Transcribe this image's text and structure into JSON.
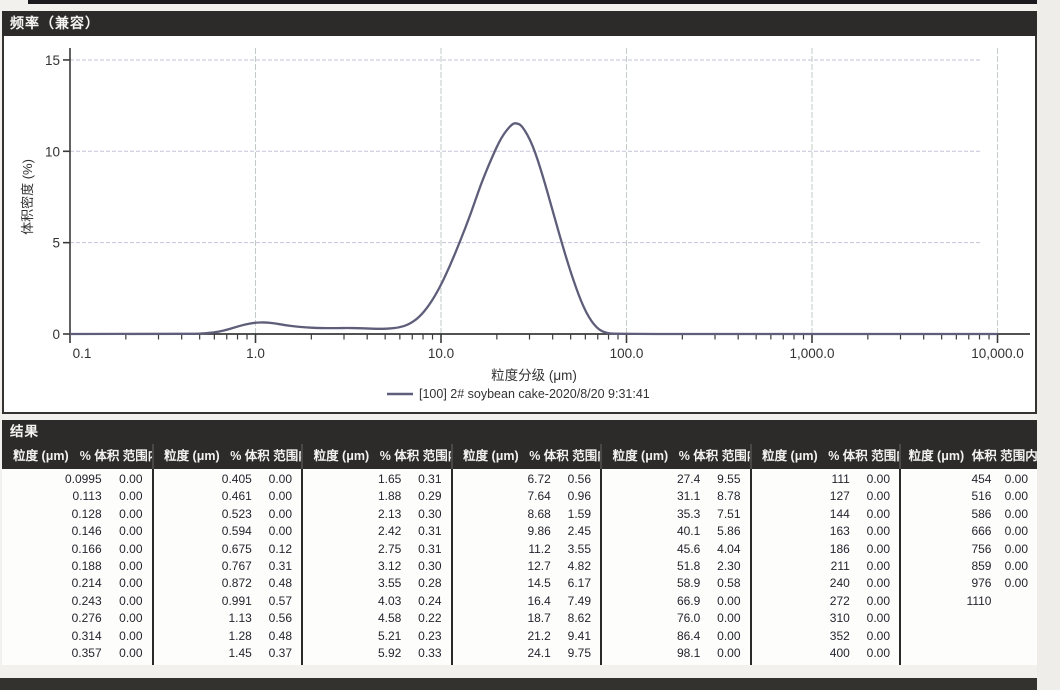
{
  "chart": {
    "title": "频率（兼容）",
    "ylabel": "体积密度 (%)",
    "xlabel": "粒度分级 (μm)",
    "legend": "[100] 2# soybean cake-2020/8/20 9:31:41",
    "x_tick_labels": [
      "0.1",
      "1.0",
      "10.0",
      "100.0",
      "1,000.0",
      "10,000.0"
    ],
    "y_tick_values": [
      0,
      5,
      10,
      15
    ]
  },
  "chart_data": {
    "type": "line",
    "title": "频率（兼容）",
    "xlabel": "粒度分级 (μm)",
    "ylabel": "体积密度 (%)",
    "x_scale": "log",
    "xlim": [
      0.1,
      10000
    ],
    "ylim": [
      0,
      15
    ],
    "grid": true,
    "legend_position": "bottom",
    "series": [
      {
        "name": "[100] 2# soybean cake-2020/8/20 9:31:41",
        "x": [
          0.1,
          0.4,
          0.5,
          0.594,
          0.675,
          0.767,
          0.872,
          0.991,
          1.13,
          1.28,
          1.45,
          1.65,
          1.88,
          2.13,
          2.42,
          2.75,
          3.12,
          3.55,
          4.03,
          4.58,
          5.21,
          5.92,
          6.72,
          7.64,
          8.68,
          9.86,
          11.2,
          12.7,
          14.5,
          16.4,
          18.7,
          21.2,
          24.1,
          25.5,
          27.4,
          31.1,
          35.3,
          40.1,
          45.6,
          51.8,
          58.9,
          66.9,
          76.0,
          90.0,
          1000.0,
          10000.0
        ],
        "y": [
          0,
          0,
          0.02,
          0.08,
          0.18,
          0.35,
          0.52,
          0.62,
          0.64,
          0.58,
          0.48,
          0.41,
          0.36,
          0.33,
          0.32,
          0.32,
          0.33,
          0.32,
          0.3,
          0.28,
          0.29,
          0.35,
          0.52,
          0.92,
          1.6,
          2.55,
          3.75,
          5.1,
          6.6,
          8.2,
          9.6,
          10.8,
          11.5,
          11.55,
          11.4,
          10.4,
          8.7,
          6.7,
          4.7,
          2.9,
          1.4,
          0.45,
          0.05,
          0,
          0,
          0
        ]
      }
    ]
  },
  "results": {
    "section_title": "结果",
    "headers": {
      "size": "粒度 (μm)",
      "pct": "% 体积 范围内",
      "pct_last": "体积 范围内"
    },
    "groups": [
      [
        [
          "0.0995",
          "0.00"
        ],
        [
          "0.113",
          "0.00"
        ],
        [
          "0.128",
          "0.00"
        ],
        [
          "0.146",
          "0.00"
        ],
        [
          "0.166",
          "0.00"
        ],
        [
          "0.188",
          "0.00"
        ],
        [
          "0.214",
          "0.00"
        ],
        [
          "0.243",
          "0.00"
        ],
        [
          "0.276",
          "0.00"
        ],
        [
          "0.314",
          "0.00"
        ],
        [
          "0.357",
          "0.00"
        ]
      ],
      [
        [
          "0.405",
          "0.00"
        ],
        [
          "0.461",
          "0.00"
        ],
        [
          "0.523",
          "0.00"
        ],
        [
          "0.594",
          "0.00"
        ],
        [
          "0.675",
          "0.12"
        ],
        [
          "0.767",
          "0.31"
        ],
        [
          "0.872",
          "0.48"
        ],
        [
          "0.991",
          "0.57"
        ],
        [
          "1.13",
          "0.56"
        ],
        [
          "1.28",
          "0.48"
        ],
        [
          "1.45",
          "0.37"
        ]
      ],
      [
        [
          "1.65",
          "0.31"
        ],
        [
          "1.88",
          "0.29"
        ],
        [
          "2.13",
          "0.30"
        ],
        [
          "2.42",
          "0.31"
        ],
        [
          "2.75",
          "0.31"
        ],
        [
          "3.12",
          "0.30"
        ],
        [
          "3.55",
          "0.28"
        ],
        [
          "4.03",
          "0.24"
        ],
        [
          "4.58",
          "0.22"
        ],
        [
          "5.21",
          "0.23"
        ],
        [
          "5.92",
          "0.33"
        ]
      ],
      [
        [
          "6.72",
          "0.56"
        ],
        [
          "7.64",
          "0.96"
        ],
        [
          "8.68",
          "1.59"
        ],
        [
          "9.86",
          "2.45"
        ],
        [
          "11.2",
          "3.55"
        ],
        [
          "12.7",
          "4.82"
        ],
        [
          "14.5",
          "6.17"
        ],
        [
          "16.4",
          "7.49"
        ],
        [
          "18.7",
          "8.62"
        ],
        [
          "21.2",
          "9.41"
        ],
        [
          "24.1",
          "9.75"
        ]
      ],
      [
        [
          "27.4",
          "9.55"
        ],
        [
          "31.1",
          "8.78"
        ],
        [
          "35.3",
          "7.51"
        ],
        [
          "40.1",
          "5.86"
        ],
        [
          "45.6",
          "4.04"
        ],
        [
          "51.8",
          "2.30"
        ],
        [
          "58.9",
          "0.58"
        ],
        [
          "66.9",
          "0.00"
        ],
        [
          "76.0",
          "0.00"
        ],
        [
          "86.4",
          "0.00"
        ],
        [
          "98.1",
          "0.00"
        ]
      ],
      [
        [
          "111",
          "0.00"
        ],
        [
          "127",
          "0.00"
        ],
        [
          "144",
          "0.00"
        ],
        [
          "163",
          "0.00"
        ],
        [
          "186",
          "0.00"
        ],
        [
          "211",
          "0.00"
        ],
        [
          "240",
          "0.00"
        ],
        [
          "272",
          "0.00"
        ],
        [
          "310",
          "0.00"
        ],
        [
          "352",
          "0.00"
        ],
        [
          "400",
          "0.00"
        ]
      ],
      [
        [
          "454",
          "0.00"
        ],
        [
          "516",
          "0.00"
        ],
        [
          "586",
          "0.00"
        ],
        [
          "666",
          "0.00"
        ],
        [
          "756",
          "0.00"
        ],
        [
          "859",
          "0.00"
        ],
        [
          "976",
          "0.00"
        ],
        [
          "1110",
          ""
        ]
      ]
    ]
  },
  "colors": {
    "curve": "#5e5e7a",
    "grid_h": "#c5c2d8",
    "grid_v": "#c3cbc6",
    "axis": "#3a3a3a",
    "bar_bg": "#2d2b29"
  }
}
